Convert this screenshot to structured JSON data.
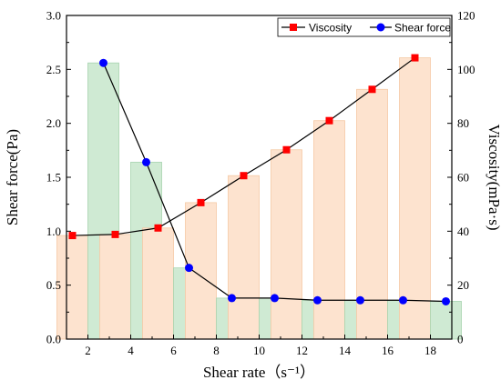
{
  "chart_data": {
    "type": "bar",
    "title": "",
    "xlabel": "Shear rate（s⁻¹）",
    "ylabel_left": "Shear force(Pa)",
    "ylabel_right": "Viscosity(mPa·s)",
    "categories": [
      "2",
      "4",
      "6",
      "8",
      "10",
      "12",
      "14",
      "16",
      "18"
    ],
    "ylim_left": [
      0,
      3.0
    ],
    "yticks_left": [
      "0.0",
      "0.5",
      "1.0",
      "1.5",
      "2.0",
      "2.5",
      "3.0"
    ],
    "ylim_right": [
      0,
      120
    ],
    "yticks_right": [
      "0",
      "20",
      "40",
      "60",
      "80",
      "100",
      "120"
    ],
    "grid": false,
    "legend_position": "top-right",
    "series": [
      {
        "name": "Viscosity",
        "axis": "right",
        "kind": "bar+line",
        "marker": "square",
        "line_color": "#000000",
        "marker_color": "#ff0000",
        "bar_fill": "#fde3cf",
        "bar_stroke": "#f5c9a4",
        "values": [
          38.4,
          38.8,
          41.2,
          50.6,
          60.6,
          70.2,
          81.0,
          92.6,
          104.3
        ]
      },
      {
        "name": "Shear force",
        "axis": "left",
        "kind": "bar+line",
        "marker": "circle",
        "line_color": "#000000",
        "marker_color": "#0000ff",
        "bar_fill": "#cfead3",
        "bar_stroke": "#a8d4b0",
        "values": [
          2.56,
          1.64,
          0.66,
          0.38,
          0.38,
          0.36,
          0.36,
          0.36,
          0.35
        ]
      }
    ]
  }
}
